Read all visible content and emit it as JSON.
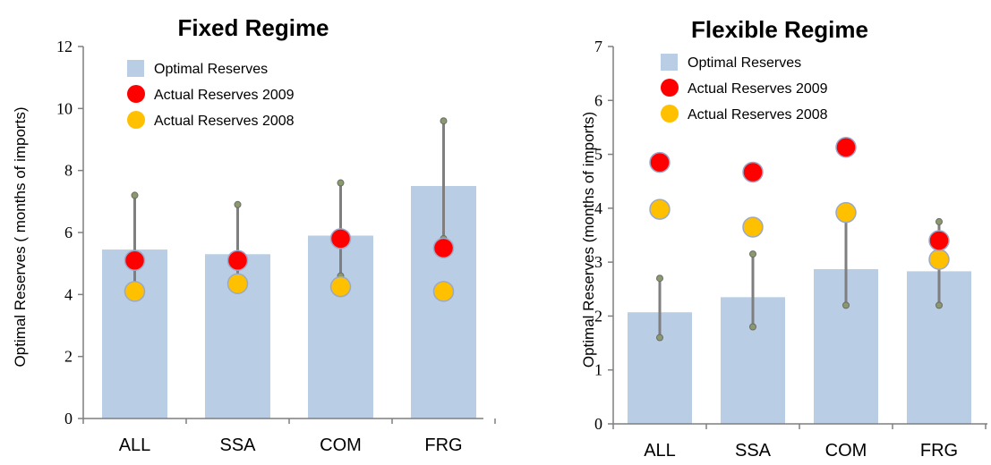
{
  "chart_data": [
    {
      "type": "bar",
      "title": "Fixed Regime",
      "ylabel": "Optimal Reserves ( months of imports)",
      "xlabel": "",
      "categories": [
        "ALL",
        "SSA",
        "COM",
        "FRG"
      ],
      "ylim": [
        0,
        12
      ],
      "yticks": [
        0,
        2,
        4,
        6,
        8,
        10,
        12
      ],
      "series": [
        {
          "name": "Optimal Reserves",
          "kind": "bar",
          "values": [
            5.45,
            5.3,
            5.9,
            7.5
          ],
          "color": "#b9cde5"
        },
        {
          "name": "Actual Reserves 2009",
          "kind": "marker",
          "values": [
            5.1,
            5.1,
            5.8,
            5.5
          ],
          "color": "#ff0000"
        },
        {
          "name": "Actual Reserves 2008",
          "kind": "marker",
          "values": [
            4.1,
            4.35,
            4.25,
            4.1
          ],
          "color": "#ffc000"
        }
      ],
      "error_low": [
        4.2,
        4.3,
        4.6,
        5.8
      ],
      "error_high": [
        7.2,
        6.9,
        7.6,
        9.6
      ],
      "grid": false,
      "legend_position": "top-center"
    },
    {
      "type": "bar",
      "title": "Flexible Regime",
      "ylabel": "Optimal Reserves (months of imports)",
      "xlabel": "",
      "categories": [
        "ALL",
        "SSA",
        "COM",
        "FRG"
      ],
      "ylim": [
        0,
        7
      ],
      "yticks": [
        0,
        1,
        2,
        3,
        4,
        5,
        6,
        7
      ],
      "series": [
        {
          "name": "Optimal Reserves",
          "kind": "bar",
          "values": [
            2.07,
            2.35,
            2.87,
            2.83
          ],
          "color": "#b9cde5"
        },
        {
          "name": "Actual Reserves 2009",
          "kind": "marker",
          "values": [
            4.85,
            4.67,
            5.13,
            3.4
          ],
          "color": "#ff0000"
        },
        {
          "name": "Actual Reserves 2008",
          "kind": "marker",
          "values": [
            3.98,
            3.65,
            3.92,
            3.05
          ],
          "color": "#ffc000"
        }
      ],
      "error_low": [
        1.6,
        1.8,
        2.2,
        2.2
      ],
      "error_high": [
        2.7,
        3.15,
        3.85,
        3.75
      ],
      "grid": false,
      "legend_position": "top-left"
    }
  ]
}
